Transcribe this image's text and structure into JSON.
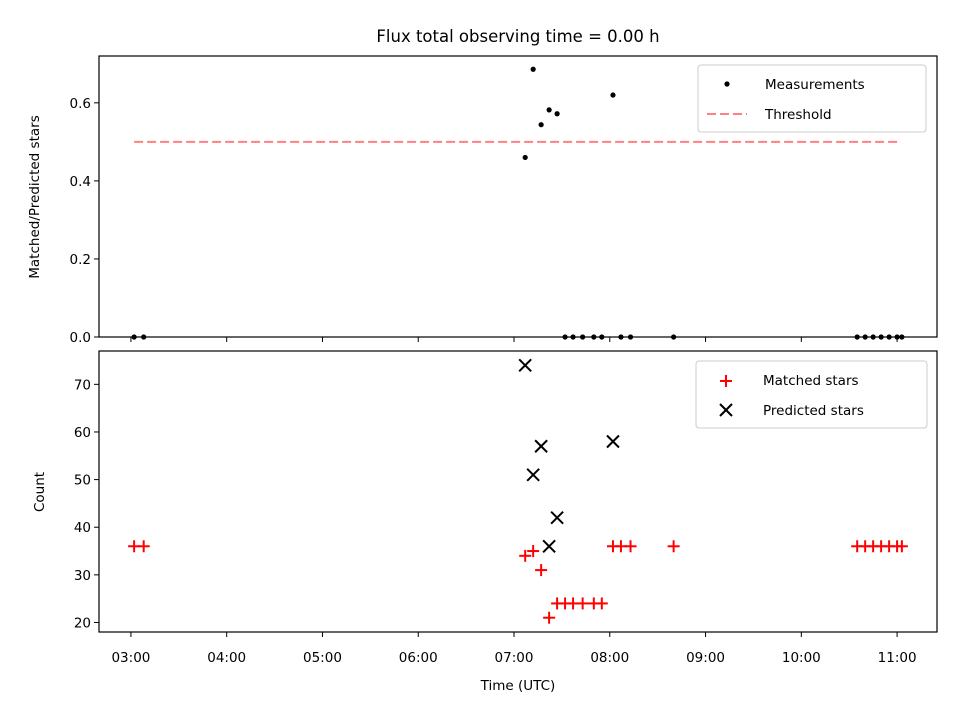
{
  "chart_data": [
    {
      "type": "scatter",
      "title": "Flux total observing time = 0.00 h",
      "xlabel": "",
      "ylabel": "Matched/Predicted stars",
      "ylim": [
        0,
        0.72
      ],
      "xlim": [
        "02:40",
        "11:25"
      ],
      "x_ticks": [
        "03:00",
        "04:00",
        "05:00",
        "06:00",
        "07:00",
        "08:00",
        "09:00",
        "10:00",
        "11:00"
      ],
      "y_ticks": [
        "0.0",
        "0.2",
        "0.4",
        "0.6"
      ],
      "legend_position": "upper right",
      "series": [
        {
          "name": "Measurements",
          "marker": "dot",
          "color": "#000000",
          "points": [
            {
              "x": "03:02",
              "y": 0.0
            },
            {
              "x": "03:08",
              "y": 0.0
            },
            {
              "x": "07:07",
              "y": 0.46
            },
            {
              "x": "07:12",
              "y": 0.686
            },
            {
              "x": "07:17",
              "y": 0.544
            },
            {
              "x": "07:22",
              "y": 0.582
            },
            {
              "x": "07:27",
              "y": 0.572
            },
            {
              "x": "07:32",
              "y": 0.0
            },
            {
              "x": "07:37",
              "y": 0.0
            },
            {
              "x": "07:43",
              "y": 0.0
            },
            {
              "x": "07:50",
              "y": 0.0
            },
            {
              "x": "07:55",
              "y": 0.0
            },
            {
              "x": "08:02",
              "y": 0.62
            },
            {
              "x": "08:07",
              "y": 0.0
            },
            {
              "x": "08:13",
              "y": 0.0
            },
            {
              "x": "08:40",
              "y": 0.0
            },
            {
              "x": "10:35",
              "y": 0.0
            },
            {
              "x": "10:40",
              "y": 0.0
            },
            {
              "x": "10:45",
              "y": 0.0
            },
            {
              "x": "10:50",
              "y": 0.0
            },
            {
              "x": "10:55",
              "y": 0.0
            },
            {
              "x": "11:00",
              "y": 0.0
            },
            {
              "x": "11:03",
              "y": 0.0
            }
          ]
        },
        {
          "name": "Threshold",
          "style": "dashed",
          "color": "#ff8080",
          "points": [
            {
              "x": "03:02",
              "y": 0.5
            },
            {
              "x": "11:00",
              "y": 0.5
            }
          ]
        }
      ]
    },
    {
      "type": "scatter",
      "title": "",
      "xlabel": "Time (UTC)",
      "ylabel": "Count",
      "ylim": [
        18,
        77
      ],
      "xlim": [
        "02:40",
        "11:25"
      ],
      "x_ticks": [
        "03:00",
        "04:00",
        "05:00",
        "06:00",
        "07:00",
        "08:00",
        "09:00",
        "10:00",
        "11:00"
      ],
      "y_ticks": [
        "20",
        "30",
        "40",
        "50",
        "60",
        "70"
      ],
      "legend_position": "upper right",
      "series": [
        {
          "name": "Matched stars",
          "marker": "plus",
          "color": "#ff0000",
          "points": [
            {
              "x": "03:02",
              "y": 36
            },
            {
              "x": "03:08",
              "y": 36
            },
            {
              "x": "07:07",
              "y": 34
            },
            {
              "x": "07:12",
              "y": 35
            },
            {
              "x": "07:17",
              "y": 31
            },
            {
              "x": "07:22",
              "y": 21
            },
            {
              "x": "07:27",
              "y": 24
            },
            {
              "x": "07:32",
              "y": 24
            },
            {
              "x": "07:37",
              "y": 24
            },
            {
              "x": "07:43",
              "y": 24
            },
            {
              "x": "07:50",
              "y": 24
            },
            {
              "x": "07:55",
              "y": 24
            },
            {
              "x": "08:02",
              "y": 36
            },
            {
              "x": "08:07",
              "y": 36
            },
            {
              "x": "08:13",
              "y": 36
            },
            {
              "x": "08:40",
              "y": 36
            },
            {
              "x": "10:35",
              "y": 36
            },
            {
              "x": "10:40",
              "y": 36
            },
            {
              "x": "10:45",
              "y": 36
            },
            {
              "x": "10:50",
              "y": 36
            },
            {
              "x": "10:55",
              "y": 36
            },
            {
              "x": "11:00",
              "y": 36
            },
            {
              "x": "11:03",
              "y": 36
            }
          ]
        },
        {
          "name": "Predicted stars",
          "marker": "x",
          "color": "#000000",
          "points": [
            {
              "x": "07:07",
              "y": 74
            },
            {
              "x": "07:12",
              "y": 51
            },
            {
              "x": "07:17",
              "y": 57
            },
            {
              "x": "07:22",
              "y": 36
            },
            {
              "x": "07:27",
              "y": 42
            },
            {
              "x": "08:02",
              "y": 58
            }
          ]
        }
      ]
    }
  ]
}
